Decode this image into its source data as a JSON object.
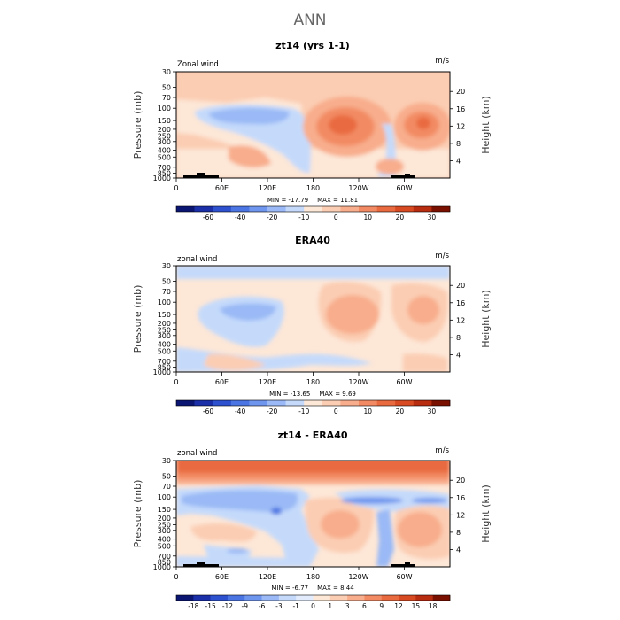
{
  "title": "ANN",
  "colors": {
    "neutral": "#fde7d7",
    "frame": "#000000",
    "land": "#000000"
  },
  "chart_data": [
    {
      "type": "contour",
      "title": "zt14 (yrs 1-1)",
      "field_label": "Zonal wind",
      "units": "m/s",
      "ylabel_left": "Pressure (mb)",
      "ylabel_right": "Height (km)",
      "xlim": [
        0,
        360
      ],
      "x_ticks": [
        "0",
        "60E",
        "120E",
        "180",
        "120W",
        "60W"
      ],
      "pressure_ticks": [
        "30",
        "50",
        "70",
        "100",
        "150",
        "200",
        "250",
        "300",
        "400",
        "500",
        "700",
        "850",
        "1000"
      ],
      "height_ticks": [
        "20",
        "16",
        "12",
        "8",
        "4"
      ],
      "min_text": "MIN = -17.79",
      "max_text": "MAX = 11.81",
      "colorbar": {
        "labels": [
          "-60",
          "-40",
          "-20",
          "-10",
          "0",
          "10",
          "20",
          "30"
        ],
        "colors": [
          "#0a1672",
          "#1a2fa8",
          "#2e52cf",
          "#4a75e2",
          "#6f96ee",
          "#9ab9f6",
          "#c5dafb",
          "#fde7d7",
          "#fbcdb3",
          "#f8ad8c",
          "#f28b64",
          "#e96a3f",
          "#d84a21",
          "#b82c10",
          "#7a1000"
        ]
      }
    },
    {
      "type": "contour",
      "title": "ERA40",
      "field_label": "zonal wind",
      "units": "m/s",
      "ylabel_left": "Pressure (mb)",
      "ylabel_right": "Height (km)",
      "xlim": [
        0,
        360
      ],
      "x_ticks": [
        "0",
        "60E",
        "120E",
        "180",
        "120W",
        "60W"
      ],
      "pressure_ticks": [
        "30",
        "50",
        "70",
        "100",
        "150",
        "200",
        "250",
        "300",
        "400",
        "500",
        "700",
        "850",
        "1000"
      ],
      "height_ticks": [
        "20",
        "16",
        "12",
        "8",
        "4"
      ],
      "min_text": "MIN = -13.65",
      "max_text": "MAX =  9.69",
      "colorbar": {
        "labels": [
          "-60",
          "-40",
          "-20",
          "-10",
          "0",
          "10",
          "20",
          "30"
        ],
        "colors": [
          "#0a1672",
          "#1a2fa8",
          "#2e52cf",
          "#4a75e2",
          "#6f96ee",
          "#9ab9f6",
          "#c5dafb",
          "#fde7d7",
          "#fbcdb3",
          "#f8ad8c",
          "#f28b64",
          "#e96a3f",
          "#d84a21",
          "#b82c10",
          "#7a1000"
        ]
      }
    },
    {
      "type": "contour",
      "title": "zt14 - ERA40",
      "field_label": "zonal wind",
      "units": "m/s",
      "ylabel_left": "Pressure (mb)",
      "ylabel_right": "Height (km)",
      "xlim": [
        0,
        360
      ],
      "x_ticks": [
        "0",
        "60E",
        "120E",
        "180",
        "120W",
        "60W"
      ],
      "pressure_ticks": [
        "30",
        "50",
        "70",
        "100",
        "150",
        "200",
        "250",
        "300",
        "400",
        "500",
        "700",
        "850",
        "1000"
      ],
      "height_ticks": [
        "20",
        "16",
        "12",
        "8",
        "4"
      ],
      "min_text": "MIN = -6.77",
      "max_text": "MAX =  8.44",
      "colorbar": {
        "labels": [
          "-18",
          "-15",
          "-12",
          "-9",
          "-6",
          "-3",
          "-1",
          "0",
          "1",
          "3",
          "6",
          "9",
          "12",
          "15",
          "18"
        ],
        "colors": [
          "#0a1672",
          "#1a2fa8",
          "#2e52cf",
          "#4a75e2",
          "#6f96ee",
          "#9ab9f6",
          "#c5dafb",
          "#e3ecfd",
          "#fde7d7",
          "#fbcdb3",
          "#f8ad8c",
          "#f28b64",
          "#e96a3f",
          "#d84a21",
          "#b82c10",
          "#7a1000"
        ]
      }
    }
  ]
}
